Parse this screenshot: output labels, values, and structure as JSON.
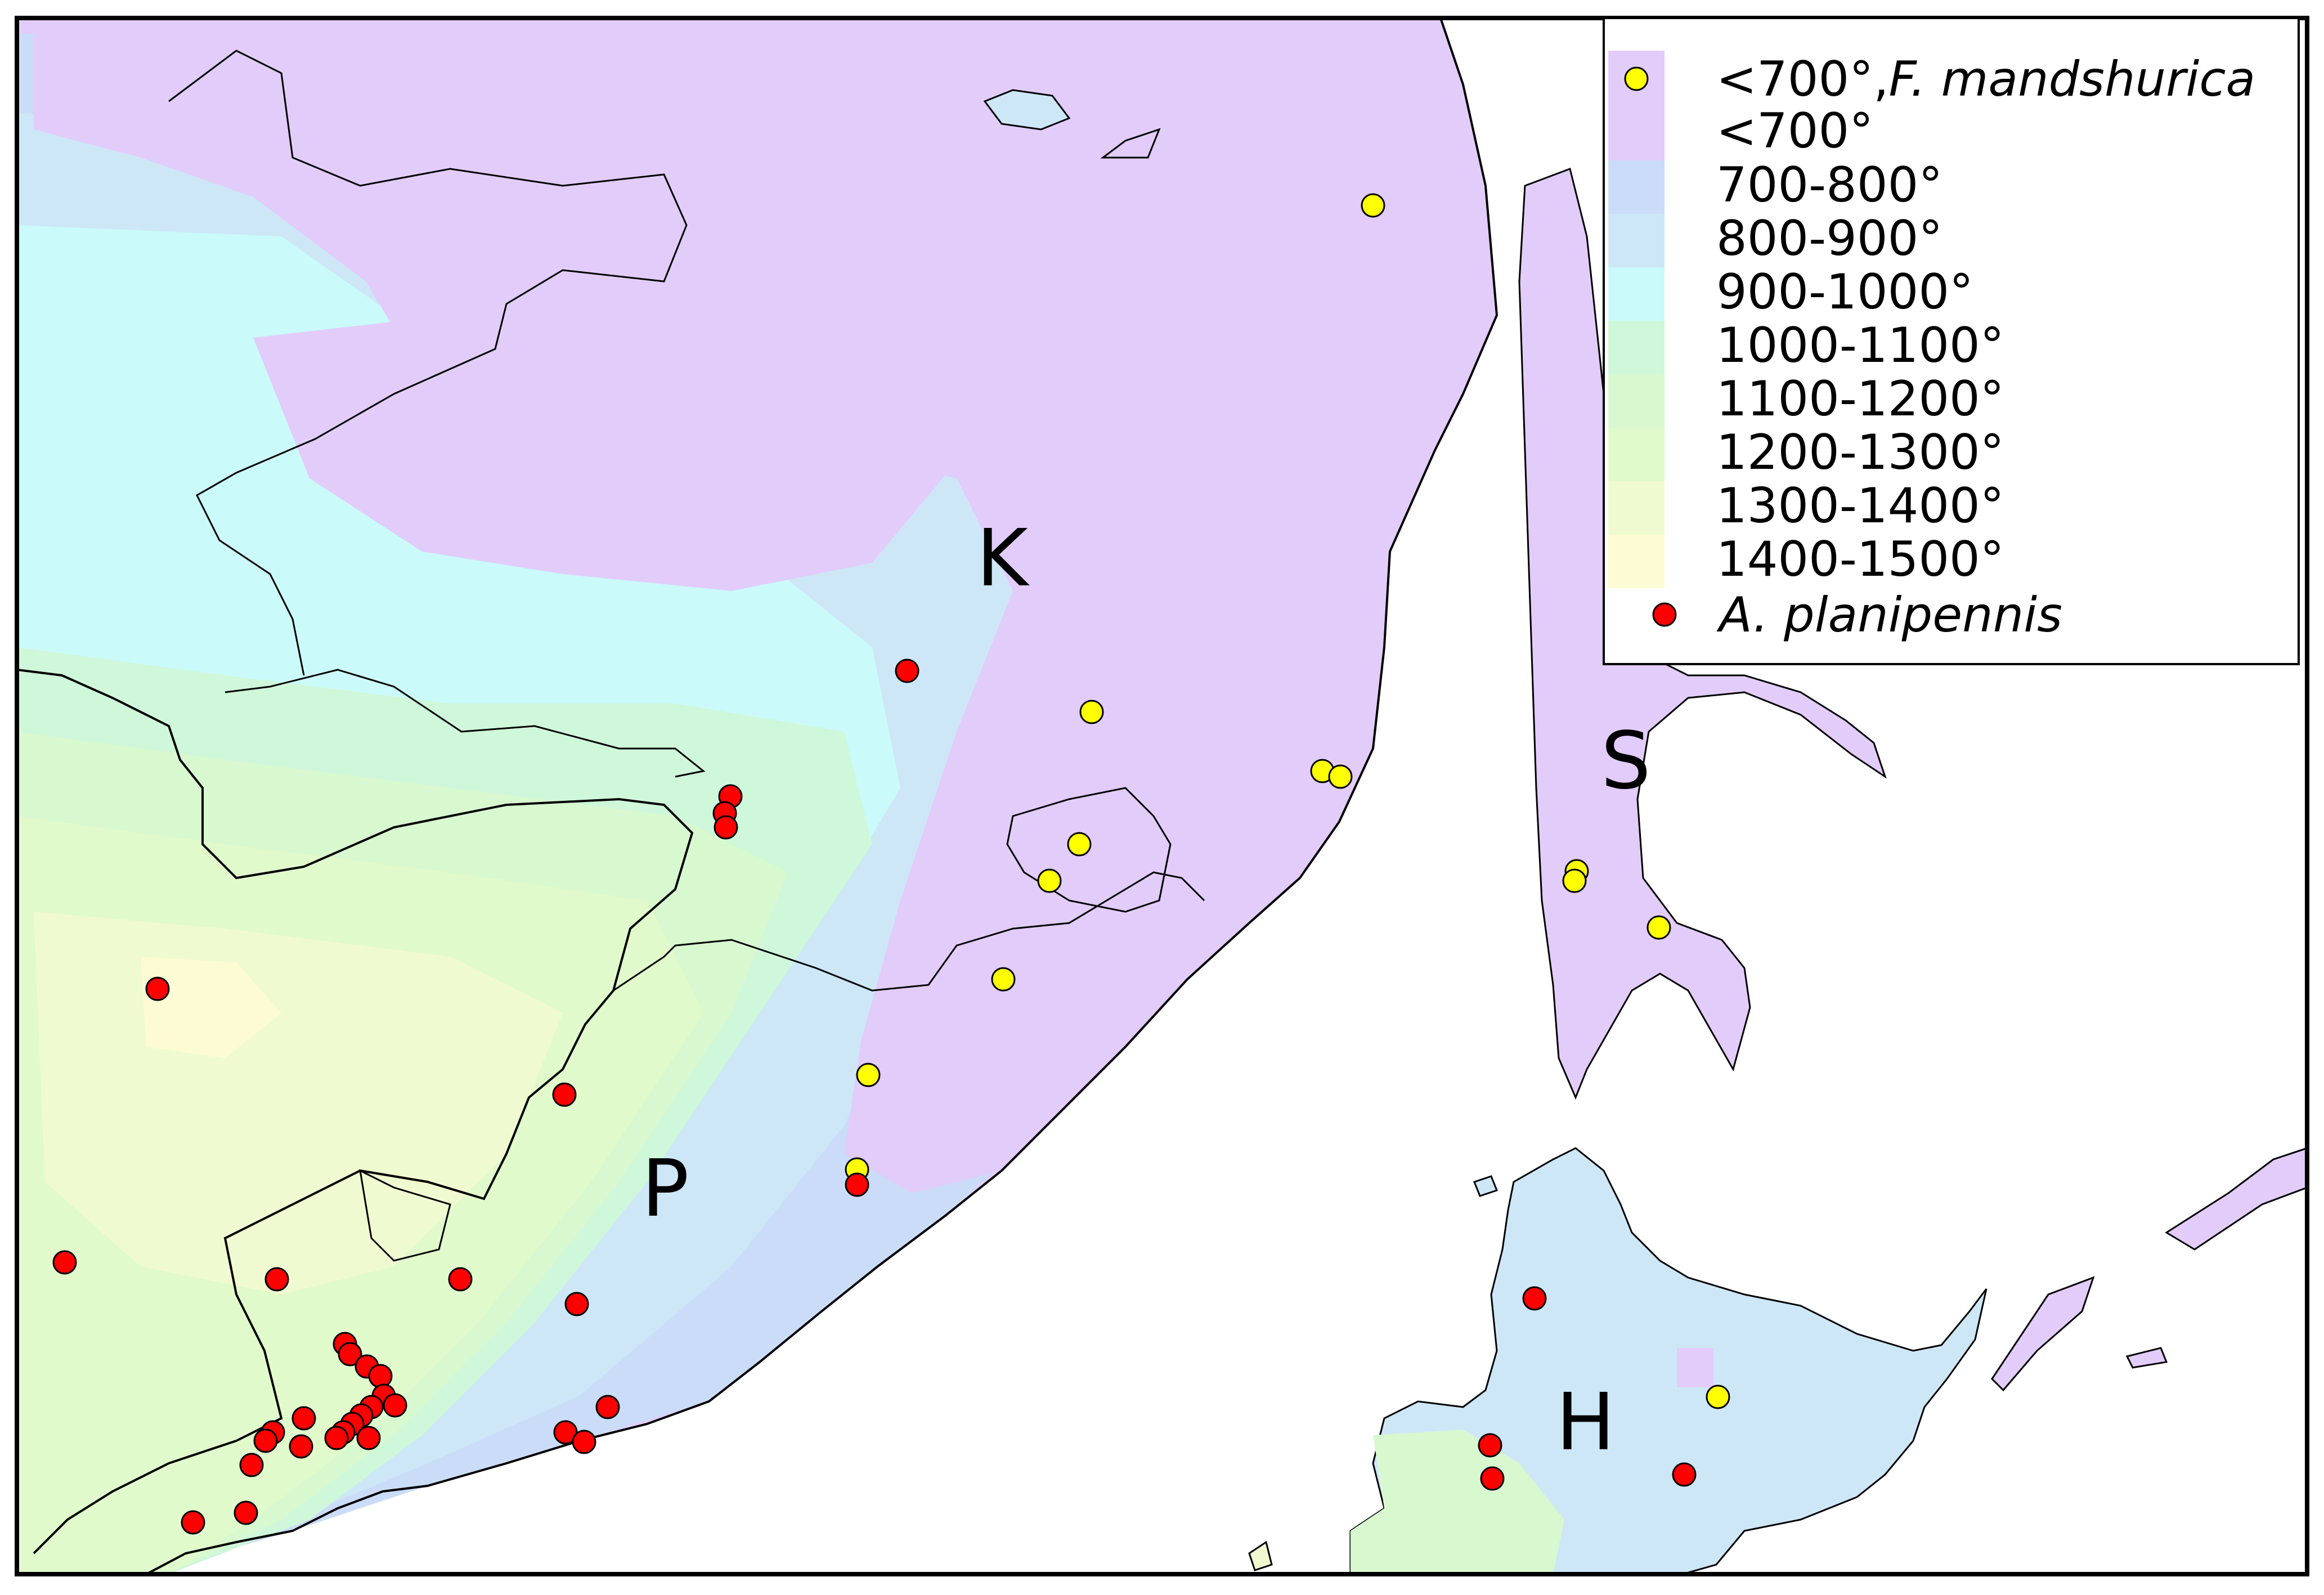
{
  "map": {
    "region_labels": [
      "K",
      "P",
      "S",
      "H"
    ],
    "colors": {
      "ocean": "#ffffff",
      "lt700": "#e2ccfa",
      "c700_800": "#cbdcf8",
      "c800_900": "#cde7f7",
      "c900_1000": "#cbfafa",
      "c1000_1100": "#cff7da",
      "c1100_1200": "#d8f8d0",
      "c1200_1300": "#e1facc",
      "c1300_1400": "#f0fad0",
      "c1400_1500": "#fdfbd3",
      "fraxinus_marker": "#ffff00",
      "agrilus_marker": "#ff0000"
    }
  },
  "legend": {
    "items": [
      {
        "label": "<700°,",
        "label_italic": "F. mandshurica",
        "swatch": "lt700",
        "marker": "yellow"
      },
      {
        "label": "<700°",
        "swatch": "lt700"
      },
      {
        "label": "700-800°",
        "swatch": "c700_800"
      },
      {
        "label": "800-900°",
        "swatch": "c800_900"
      },
      {
        "label": "900-1000°",
        "swatch": "c900_1000"
      },
      {
        "label": "1000-1100°",
        "swatch": "c1000_1100"
      },
      {
        "label": "1100-1200°",
        "swatch": "c1100_1200"
      },
      {
        "label": "1200-1300°",
        "swatch": "c1200_1300"
      },
      {
        "label": "1300-1400°",
        "swatch": "c1300_1400"
      },
      {
        "label": "1400-1500°",
        "swatch": "c1400_1500"
      },
      {
        "label_italic": "A. planipennis",
        "marker": "red"
      }
    ]
  }
}
